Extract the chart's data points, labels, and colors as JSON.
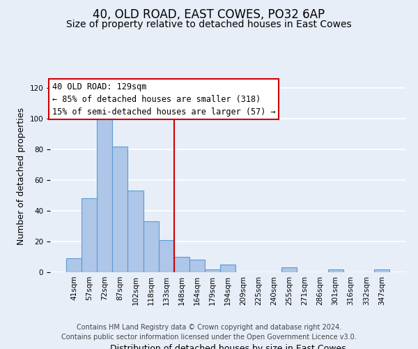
{
  "title": "40, OLD ROAD, EAST COWES, PO32 6AP",
  "subtitle": "Size of property relative to detached houses in East Cowes",
  "xlabel": "Distribution of detached houses by size in East Cowes",
  "ylabel": "Number of detached properties",
  "bar_labels": [
    "41sqm",
    "57sqm",
    "72sqm",
    "87sqm",
    "102sqm",
    "118sqm",
    "133sqm",
    "148sqm",
    "164sqm",
    "179sqm",
    "194sqm",
    "209sqm",
    "225sqm",
    "240sqm",
    "255sqm",
    "271sqm",
    "286sqm",
    "301sqm",
    "316sqm",
    "332sqm",
    "347sqm"
  ],
  "bar_values": [
    9,
    48,
    100,
    82,
    53,
    33,
    21,
    10,
    8,
    2,
    5,
    0,
    0,
    0,
    3,
    0,
    0,
    2,
    0,
    0,
    2
  ],
  "bar_color": "#aec6e8",
  "bar_edge_color": "#5b9bd5",
  "vline_color": "#cc0000",
  "vline_pos": 6.5,
  "annotation_line1": "40 OLD ROAD: 129sqm",
  "annotation_line2": "← 85% of detached houses are smaller (318)",
  "annotation_line3": "15% of semi-detached houses are larger (57) →",
  "annotation_box_edgecolor": "#cc0000",
  "annotation_bg": "#ffffff",
  "ylim": [
    0,
    125
  ],
  "yticks": [
    0,
    20,
    40,
    60,
    80,
    100,
    120
  ],
  "footer_line1": "Contains HM Land Registry data © Crown copyright and database right 2024.",
  "footer_line2": "Contains public sector information licensed under the Open Government Licence v3.0.",
  "bg_color": "#e8eef8",
  "grid_color": "#ffffff",
  "title_fontsize": 12,
  "subtitle_fontsize": 10,
  "axis_label_fontsize": 9,
  "tick_fontsize": 7.5,
  "annotation_fontsize": 8.5,
  "footer_fontsize": 7
}
